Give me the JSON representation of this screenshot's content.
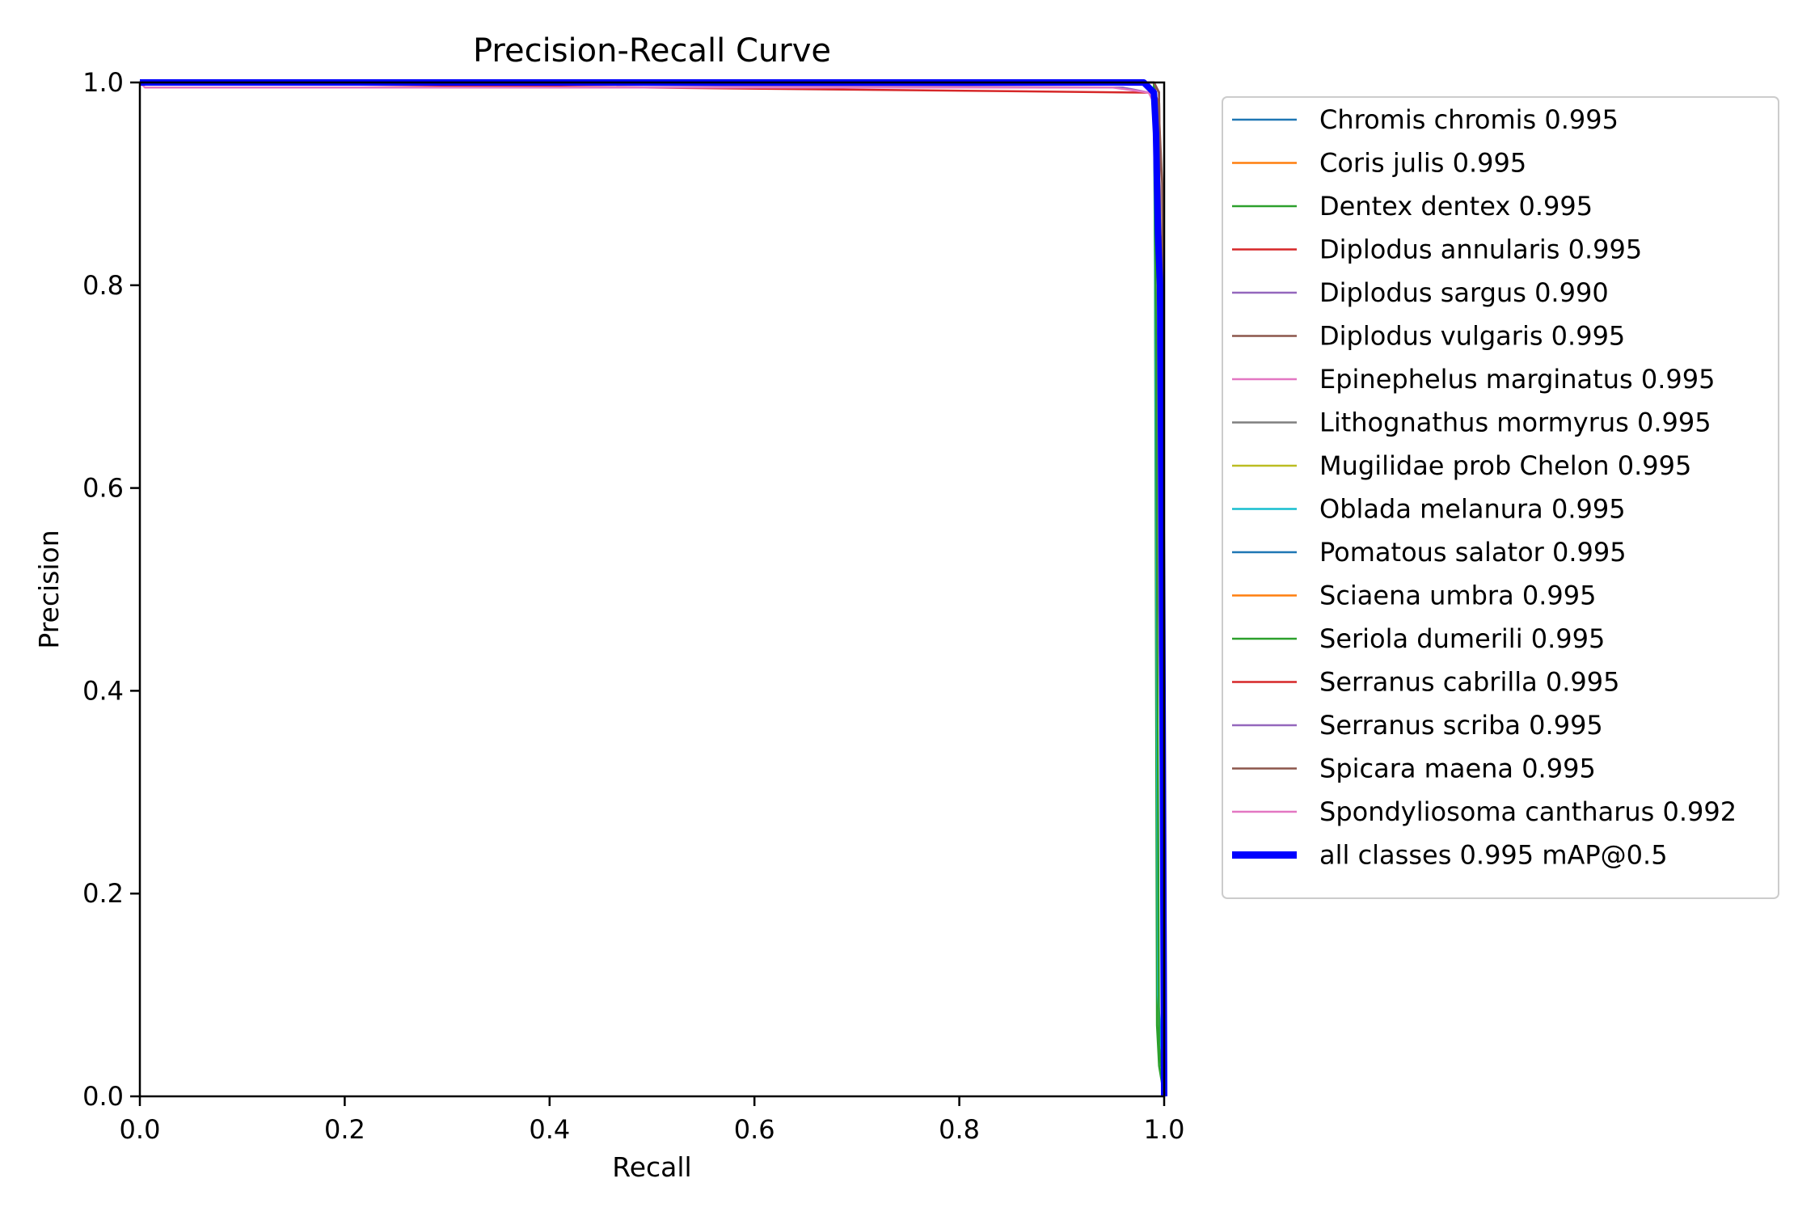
{
  "chart_data": {
    "type": "line",
    "title": "Precision-Recall Curve",
    "xlabel": "Recall",
    "ylabel": "Precision",
    "xlim": [
      0,
      1
    ],
    "ylim": [
      0,
      1
    ],
    "xticks": [
      "0.0",
      "0.2",
      "0.4",
      "0.6",
      "0.8",
      "1.0"
    ],
    "yticks": [
      "0.0",
      "0.2",
      "0.4",
      "0.6",
      "0.8",
      "1.0"
    ],
    "legend_position": "outside-right",
    "series": [
      {
        "name": "Chromis chromis 0.995",
        "color": "#1f77b4",
        "x": [
          0,
          0.99,
          0.995,
          1.0
        ],
        "y": [
          1.0,
          1.0,
          0.99,
          0.0
        ]
      },
      {
        "name": "Coris julis 0.995",
        "color": "#ff7f0e",
        "x": [
          0,
          0.99,
          0.995,
          1.0
        ],
        "y": [
          1.0,
          1.0,
          0.99,
          0.0
        ]
      },
      {
        "name": "Dentex dentex 0.995",
        "color": "#2ca02c",
        "x": [
          0,
          0.99,
          0.991,
          0.993,
          0.995,
          1.0
        ],
        "y": [
          1.0,
          1.0,
          0.82,
          0.07,
          0.03,
          0.0
        ]
      },
      {
        "name": "Diplodus annularis 0.995",
        "color": "#d62728",
        "x": [
          0,
          0.98,
          0.99,
          0.995,
          1.0
        ],
        "y": [
          1.0,
          0.99,
          0.99,
          0.98,
          0.0
        ]
      },
      {
        "name": "Diplodus sargus 0.990",
        "color": "#9467bd",
        "x": [
          0,
          0.96,
          0.985,
          0.99,
          1.0
        ],
        "y": [
          1.0,
          0.995,
          0.99,
          0.98,
          0.0
        ]
      },
      {
        "name": "Diplodus vulgaris 0.995",
        "color": "#8c564b",
        "x": [
          0,
          0.99,
          0.995,
          0.998,
          1.0
        ],
        "y": [
          1.0,
          1.0,
          0.97,
          0.9,
          0.0
        ]
      },
      {
        "name": "Epinephelus marginatus 0.995",
        "color": "#e377c2",
        "x": [
          0,
          0.99,
          0.995,
          1.0
        ],
        "y": [
          1.0,
          1.0,
          0.99,
          0.0
        ]
      },
      {
        "name": "Lithognathus mormyrus 0.995",
        "color": "#7f7f7f",
        "x": [
          0,
          0.99,
          0.995,
          1.0
        ],
        "y": [
          1.0,
          1.0,
          0.99,
          0.0
        ]
      },
      {
        "name": "Mugilidae prob Chelon 0.995",
        "color": "#bcbd22",
        "x": [
          0,
          0.99,
          0.995,
          1.0
        ],
        "y": [
          1.0,
          1.0,
          0.99,
          0.0
        ]
      },
      {
        "name": "Oblada melanura 0.995",
        "color": "#17becf",
        "x": [
          0,
          0.99,
          0.991,
          0.994,
          1.0
        ],
        "y": [
          1.0,
          1.0,
          0.85,
          0.1,
          0.0
        ]
      },
      {
        "name": "Pomatous salator 0.995",
        "color": "#1f77b4",
        "x": [
          0,
          0.99,
          0.995,
          1.0
        ],
        "y": [
          1.0,
          1.0,
          0.99,
          0.0
        ]
      },
      {
        "name": "Sciaena umbra 0.995",
        "color": "#ff7f0e",
        "x": [
          0,
          0.99,
          0.995,
          1.0
        ],
        "y": [
          1.0,
          1.0,
          0.99,
          0.0
        ]
      },
      {
        "name": "Seriola dumerili 0.995",
        "color": "#2ca02c",
        "x": [
          0,
          0.99,
          0.992,
          0.995,
          1.0
        ],
        "y": [
          1.0,
          1.0,
          0.75,
          0.05,
          0.0
        ]
      },
      {
        "name": "Serranus cabrilla 0.995",
        "color": "#d62728",
        "x": [
          0,
          0.99,
          0.995,
          1.0
        ],
        "y": [
          1.0,
          1.0,
          0.99,
          0.0
        ]
      },
      {
        "name": "Serranus scriba 0.995",
        "color": "#9467bd",
        "x": [
          0,
          0.99,
          0.995,
          1.0
        ],
        "y": [
          1.0,
          1.0,
          0.99,
          0.0
        ]
      },
      {
        "name": "Spicara maena 0.995",
        "color": "#8c564b",
        "x": [
          0,
          0.99,
          0.995,
          1.0
        ],
        "y": [
          1.0,
          1.0,
          0.99,
          0.0
        ]
      },
      {
        "name": "Spondyliosoma cantharus 0.992",
        "color": "#e377c2",
        "x": [
          0,
          0.005,
          0.95,
          0.985,
          0.99,
          0.995,
          1.0
        ],
        "y": [
          1.0,
          0.995,
          0.995,
          0.99,
          0.98,
          0.9,
          0.0
        ]
      },
      {
        "name": "all classes 0.995 mAP@0.5",
        "color": "#0000ff",
        "thick": true,
        "x": [
          0,
          0.98,
          0.99,
          0.992,
          0.994,
          0.996,
          0.998,
          1.0
        ],
        "y": [
          1.0,
          1.0,
          0.99,
          0.95,
          0.85,
          0.8,
          0.5,
          0.0
        ]
      }
    ]
  }
}
